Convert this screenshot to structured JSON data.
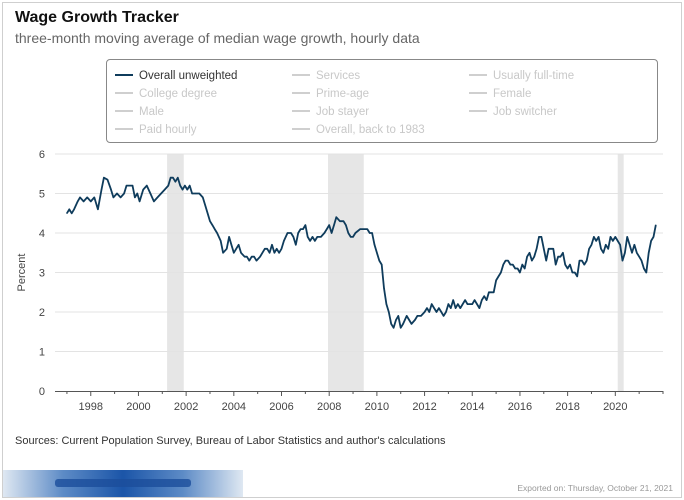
{
  "header": {
    "title": "Wage Growth Tracker",
    "subtitle": "three-month moving average of median wage growth, hourly data"
  },
  "legend": {
    "items": [
      {
        "label": "Overall unweighted",
        "active": true
      },
      {
        "label": "Services",
        "active": false
      },
      {
        "label": "Usually full-time",
        "active": false
      },
      {
        "label": "College degree",
        "active": false
      },
      {
        "label": "Prime-age",
        "active": false
      },
      {
        "label": "Female",
        "active": false
      },
      {
        "label": "Male",
        "active": false
      },
      {
        "label": "Job stayer",
        "active": false
      },
      {
        "label": "Job switcher",
        "active": false
      },
      {
        "label": "Paid hourly",
        "active": false
      },
      {
        "label": "Overall, back to 1983",
        "active": false
      }
    ]
  },
  "footer": {
    "source": "Sources: Current Population Survey, Bureau of Labor Statistics and author's calculations",
    "exported": "Exported on: Thursday, October 21, 2021"
  },
  "colors": {
    "line": "#0f3c5c",
    "recession": "#e6e6e6",
    "grid": "#e3e3e3",
    "axis": "#555555"
  },
  "chart_data": {
    "type": "line",
    "title": "Wage Growth Tracker",
    "subtitle": "three-month moving average of median wage growth, hourly data",
    "ylabel": "Percent",
    "xlabel": "",
    "xlim": [
      1996.5,
      2022.0
    ],
    "ylim": [
      0,
      6
    ],
    "yticks": [
      0,
      1,
      2,
      3,
      4,
      5,
      6
    ],
    "xticks": [
      1998,
      2000,
      2002,
      2004,
      2006,
      2008,
      2010,
      2012,
      2014,
      2016,
      2018,
      2020
    ],
    "grid": true,
    "recessions": [
      [
        2001.2,
        2001.9
      ],
      [
        2007.95,
        2009.45
      ],
      [
        2020.1,
        2020.35
      ]
    ],
    "series": [
      {
        "name": "Overall unweighted",
        "points": [
          [
            1997.0,
            4.5
          ],
          [
            1997.1,
            4.6
          ],
          [
            1997.2,
            4.5
          ],
          [
            1997.3,
            4.6
          ],
          [
            1997.45,
            4.8
          ],
          [
            1997.55,
            4.9
          ],
          [
            1997.7,
            4.8
          ],
          [
            1997.85,
            4.9
          ],
          [
            1998.0,
            4.8
          ],
          [
            1998.15,
            4.9
          ],
          [
            1998.3,
            4.6
          ],
          [
            1998.45,
            5.1
          ],
          [
            1998.55,
            5.4
          ],
          [
            1998.7,
            5.35
          ],
          [
            1998.85,
            5.1
          ],
          [
            1998.95,
            4.9
          ],
          [
            1999.1,
            5.0
          ],
          [
            1999.25,
            4.9
          ],
          [
            1999.4,
            5.0
          ],
          [
            1999.5,
            5.2
          ],
          [
            1999.6,
            5.2
          ],
          [
            1999.75,
            5.2
          ],
          [
            1999.85,
            4.9
          ],
          [
            1999.95,
            5.0
          ],
          [
            2000.05,
            4.8
          ],
          [
            2000.2,
            5.1
          ],
          [
            2000.35,
            5.2
          ],
          [
            2000.5,
            5.0
          ],
          [
            2000.65,
            4.8
          ],
          [
            2000.8,
            4.9
          ],
          [
            2000.95,
            5.0
          ],
          [
            2001.1,
            5.1
          ],
          [
            2001.25,
            5.2
          ],
          [
            2001.35,
            5.4
          ],
          [
            2001.45,
            5.4
          ],
          [
            2001.55,
            5.3
          ],
          [
            2001.65,
            5.4
          ],
          [
            2001.75,
            5.2
          ],
          [
            2001.85,
            5.1
          ],
          [
            2001.95,
            5.2
          ],
          [
            2002.05,
            5.1
          ],
          [
            2002.15,
            5.2
          ],
          [
            2002.25,
            5.0
          ],
          [
            2002.4,
            5.0
          ],
          [
            2002.55,
            5.0
          ],
          [
            2002.7,
            4.9
          ],
          [
            2002.8,
            4.7
          ],
          [
            2002.9,
            4.5
          ],
          [
            2003.0,
            4.3
          ],
          [
            2003.1,
            4.2
          ],
          [
            2003.2,
            4.1
          ],
          [
            2003.3,
            4.0
          ],
          [
            2003.45,
            3.8
          ],
          [
            2003.55,
            3.5
          ],
          [
            2003.7,
            3.6
          ],
          [
            2003.8,
            3.9
          ],
          [
            2003.9,
            3.7
          ],
          [
            2004.0,
            3.5
          ],
          [
            2004.1,
            3.6
          ],
          [
            2004.2,
            3.7
          ],
          [
            2004.3,
            3.5
          ],
          [
            2004.45,
            3.4
          ],
          [
            2004.55,
            3.4
          ],
          [
            2004.65,
            3.3
          ],
          [
            2004.75,
            3.4
          ],
          [
            2004.85,
            3.4
          ],
          [
            2004.95,
            3.3
          ],
          [
            2005.1,
            3.4
          ],
          [
            2005.2,
            3.5
          ],
          [
            2005.3,
            3.6
          ],
          [
            2005.4,
            3.6
          ],
          [
            2005.5,
            3.5
          ],
          [
            2005.6,
            3.7
          ],
          [
            2005.7,
            3.5
          ],
          [
            2005.8,
            3.6
          ],
          [
            2005.9,
            3.5
          ],
          [
            2006.0,
            3.6
          ],
          [
            2006.1,
            3.8
          ],
          [
            2006.25,
            4.0
          ],
          [
            2006.4,
            4.0
          ],
          [
            2006.5,
            3.9
          ],
          [
            2006.6,
            3.7
          ],
          [
            2006.7,
            4.0
          ],
          [
            2006.8,
            4.1
          ],
          [
            2006.9,
            4.1
          ],
          [
            2007.0,
            4.2
          ],
          [
            2007.1,
            3.9
          ],
          [
            2007.2,
            3.8
          ],
          [
            2007.3,
            3.9
          ],
          [
            2007.4,
            3.8
          ],
          [
            2007.5,
            3.9
          ],
          [
            2007.65,
            3.9
          ],
          [
            2007.8,
            4.0
          ],
          [
            2007.9,
            4.1
          ],
          [
            2008.0,
            4.2
          ],
          [
            2008.1,
            4.0
          ],
          [
            2008.2,
            4.2
          ],
          [
            2008.3,
            4.4
          ],
          [
            2008.45,
            4.3
          ],
          [
            2008.6,
            4.3
          ],
          [
            2008.7,
            4.2
          ],
          [
            2008.8,
            4.0
          ],
          [
            2008.9,
            3.9
          ],
          [
            2009.0,
            3.9
          ],
          [
            2009.1,
            4.0
          ],
          [
            2009.3,
            4.1
          ],
          [
            2009.5,
            4.1
          ],
          [
            2009.6,
            4.1
          ],
          [
            2009.7,
            4.0
          ],
          [
            2009.8,
            4.0
          ],
          [
            2009.9,
            3.7
          ],
          [
            2010.0,
            3.5
          ],
          [
            2010.1,
            3.3
          ],
          [
            2010.2,
            3.2
          ],
          [
            2010.3,
            2.6
          ],
          [
            2010.4,
            2.2
          ],
          [
            2010.5,
            2.0
          ],
          [
            2010.6,
            1.7
          ],
          [
            2010.7,
            1.6
          ],
          [
            2010.8,
            1.8
          ],
          [
            2010.9,
            1.9
          ],
          [
            2011.0,
            1.6
          ],
          [
            2011.1,
            1.7
          ],
          [
            2011.25,
            1.9
          ],
          [
            2011.35,
            1.8
          ],
          [
            2011.45,
            1.7
          ],
          [
            2011.6,
            1.8
          ],
          [
            2011.7,
            1.9
          ],
          [
            2011.85,
            1.9
          ],
          [
            2012.0,
            2.0
          ],
          [
            2012.1,
            2.1
          ],
          [
            2012.2,
            2.0
          ],
          [
            2012.3,
            2.2
          ],
          [
            2012.4,
            2.1
          ],
          [
            2012.5,
            2.0
          ],
          [
            2012.6,
            2.1
          ],
          [
            2012.7,
            2.0
          ],
          [
            2012.8,
            1.9
          ],
          [
            2012.9,
            2.0
          ],
          [
            2013.0,
            2.2
          ],
          [
            2013.1,
            2.1
          ],
          [
            2013.2,
            2.3
          ],
          [
            2013.3,
            2.1
          ],
          [
            2013.4,
            2.2
          ],
          [
            2013.5,
            2.1
          ],
          [
            2013.6,
            2.2
          ],
          [
            2013.7,
            2.3
          ],
          [
            2013.8,
            2.2
          ],
          [
            2013.9,
            2.2
          ],
          [
            2014.0,
            2.2
          ],
          [
            2014.1,
            2.3
          ],
          [
            2014.2,
            2.2
          ],
          [
            2014.3,
            2.1
          ],
          [
            2014.4,
            2.3
          ],
          [
            2014.5,
            2.4
          ],
          [
            2014.6,
            2.3
          ],
          [
            2014.7,
            2.5
          ],
          [
            2014.8,
            2.5
          ],
          [
            2014.9,
            2.5
          ],
          [
            2015.0,
            2.8
          ],
          [
            2015.1,
            2.9
          ],
          [
            2015.2,
            3.0
          ],
          [
            2015.3,
            3.2
          ],
          [
            2015.4,
            3.3
          ],
          [
            2015.5,
            3.3
          ],
          [
            2015.6,
            3.2
          ],
          [
            2015.7,
            3.2
          ],
          [
            2015.8,
            3.1
          ],
          [
            2015.9,
            3.1
          ],
          [
            2016.0,
            3.0
          ],
          [
            2016.1,
            3.2
          ],
          [
            2016.2,
            3.1
          ],
          [
            2016.3,
            3.4
          ],
          [
            2016.4,
            3.5
          ],
          [
            2016.5,
            3.3
          ],
          [
            2016.6,
            3.4
          ],
          [
            2016.7,
            3.6
          ],
          [
            2016.8,
            3.9
          ],
          [
            2016.9,
            3.9
          ],
          [
            2017.0,
            3.6
          ],
          [
            2017.1,
            3.3
          ],
          [
            2017.2,
            3.6
          ],
          [
            2017.3,
            3.6
          ],
          [
            2017.4,
            3.6
          ],
          [
            2017.5,
            3.2
          ],
          [
            2017.6,
            3.4
          ],
          [
            2017.7,
            3.4
          ],
          [
            2017.8,
            3.5
          ],
          [
            2017.9,
            3.2
          ],
          [
            2018.0,
            3.1
          ],
          [
            2018.1,
            3.2
          ],
          [
            2018.2,
            3.0
          ],
          [
            2018.3,
            3.0
          ],
          [
            2018.4,
            2.9
          ],
          [
            2018.5,
            3.3
          ],
          [
            2018.6,
            3.3
          ],
          [
            2018.7,
            3.2
          ],
          [
            2018.8,
            3.3
          ],
          [
            2018.9,
            3.6
          ],
          [
            2019.0,
            3.7
          ],
          [
            2019.1,
            3.9
          ],
          [
            2019.2,
            3.8
          ],
          [
            2019.3,
            3.9
          ],
          [
            2019.4,
            3.6
          ],
          [
            2019.5,
            3.5
          ],
          [
            2019.6,
            3.7
          ],
          [
            2019.7,
            3.6
          ],
          [
            2019.8,
            3.9
          ],
          [
            2019.9,
            3.8
          ],
          [
            2020.0,
            3.9
          ],
          [
            2020.1,
            3.8
          ],
          [
            2020.2,
            3.7
          ],
          [
            2020.3,
            3.3
          ],
          [
            2020.4,
            3.5
          ],
          [
            2020.5,
            3.9
          ],
          [
            2020.6,
            3.7
          ],
          [
            2020.7,
            3.5
          ],
          [
            2020.8,
            3.7
          ],
          [
            2020.9,
            3.5
          ],
          [
            2021.0,
            3.4
          ],
          [
            2021.1,
            3.3
          ],
          [
            2021.2,
            3.1
          ],
          [
            2021.3,
            3.0
          ],
          [
            2021.4,
            3.5
          ],
          [
            2021.5,
            3.8
          ],
          [
            2021.6,
            3.9
          ],
          [
            2021.7,
            4.2
          ]
        ]
      }
    ]
  }
}
